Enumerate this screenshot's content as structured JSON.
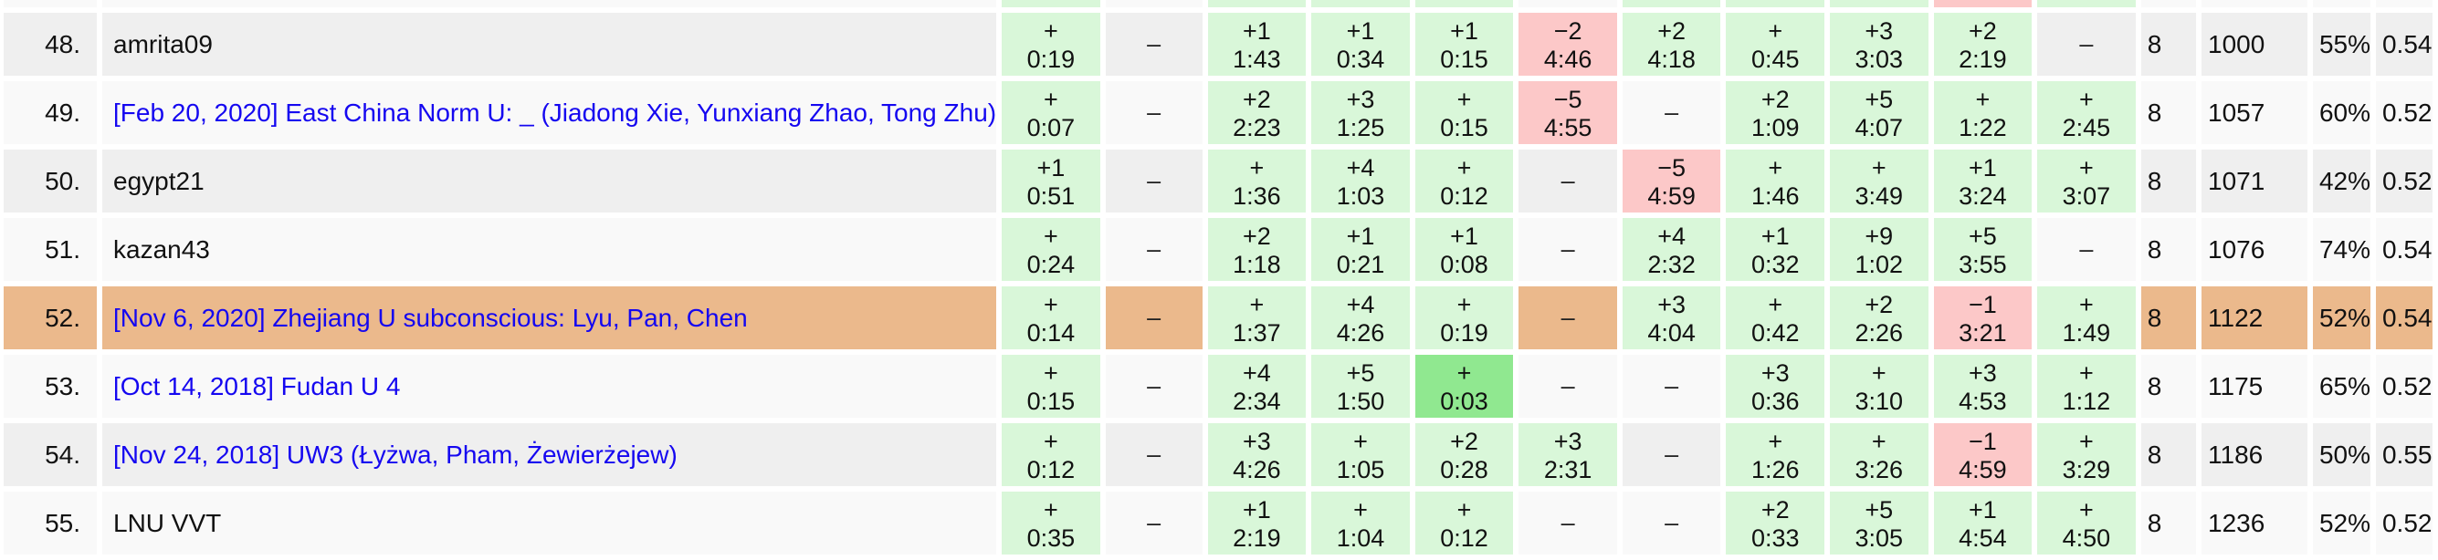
{
  "table": {
    "colors": {
      "row_light": "#f9f9f9",
      "row_dark": "#efefef",
      "highlight": "#ebb98c",
      "solved": "#d9f7d9",
      "first_solved": "#90e890",
      "failed": "#fcc8c8",
      "link": "#1507f0"
    },
    "partial_top_row": {
      "shade": "light",
      "problem_statuses": [
        "solved",
        "none",
        "solved",
        "solved",
        "solved",
        "none",
        "solved",
        "solved",
        "solved",
        "failed",
        "solved"
      ]
    },
    "rows": [
      {
        "rank": "48.",
        "name": "amrita09",
        "is_link": false,
        "shade": "dark",
        "problems": [
          {
            "attempts": "+",
            "time": "0:19",
            "status": "solved"
          },
          {
            "attempts": "–",
            "time": "",
            "status": "none"
          },
          {
            "attempts": "+1",
            "time": "1:43",
            "status": "solved"
          },
          {
            "attempts": "+1",
            "time": "0:34",
            "status": "solved"
          },
          {
            "attempts": "+1",
            "time": "0:15",
            "status": "solved"
          },
          {
            "attempts": "−2",
            "time": "4:46",
            "status": "failed"
          },
          {
            "attempts": "+2",
            "time": "4:18",
            "status": "solved"
          },
          {
            "attempts": "+",
            "time": "0:45",
            "status": "solved"
          },
          {
            "attempts": "+3",
            "time": "3:03",
            "status": "solved"
          },
          {
            "attempts": "+2",
            "time": "2:19",
            "status": "solved"
          },
          {
            "attempts": "–",
            "time": "",
            "status": "none"
          }
        ],
        "solved": "8",
        "penalty": "1000",
        "success_rate": "55%",
        "ratio": "0.54"
      },
      {
        "rank": "49.",
        "name": "[Feb 20, 2020] East China Norm U: _ (Jiadong Xie, Yunxiang Zhao, Tong Zhu)",
        "is_link": true,
        "shade": "light",
        "problems": [
          {
            "attempts": "+",
            "time": "0:07",
            "status": "solved"
          },
          {
            "attempts": "–",
            "time": "",
            "status": "none"
          },
          {
            "attempts": "+2",
            "time": "2:23",
            "status": "solved"
          },
          {
            "attempts": "+3",
            "time": "1:25",
            "status": "solved"
          },
          {
            "attempts": "+",
            "time": "0:15",
            "status": "solved"
          },
          {
            "attempts": "−5",
            "time": "4:55",
            "status": "failed"
          },
          {
            "attempts": "–",
            "time": "",
            "status": "none"
          },
          {
            "attempts": "+2",
            "time": "1:09",
            "status": "solved"
          },
          {
            "attempts": "+5",
            "time": "4:07",
            "status": "solved"
          },
          {
            "attempts": "+",
            "time": "1:22",
            "status": "solved"
          },
          {
            "attempts": "+",
            "time": "2:45",
            "status": "solved"
          }
        ],
        "solved": "8",
        "penalty": "1057",
        "success_rate": "60%",
        "ratio": "0.52"
      },
      {
        "rank": "50.",
        "name": "egypt21",
        "is_link": false,
        "shade": "dark",
        "problems": [
          {
            "attempts": "+1",
            "time": "0:51",
            "status": "solved"
          },
          {
            "attempts": "–",
            "time": "",
            "status": "none"
          },
          {
            "attempts": "+",
            "time": "1:36",
            "status": "solved"
          },
          {
            "attempts": "+4",
            "time": "1:03",
            "status": "solved"
          },
          {
            "attempts": "+",
            "time": "0:12",
            "status": "solved"
          },
          {
            "attempts": "–",
            "time": "",
            "status": "none"
          },
          {
            "attempts": "−5",
            "time": "4:59",
            "status": "failed"
          },
          {
            "attempts": "+",
            "time": "1:46",
            "status": "solved"
          },
          {
            "attempts": "+",
            "time": "3:49",
            "status": "solved"
          },
          {
            "attempts": "+1",
            "time": "3:24",
            "status": "solved"
          },
          {
            "attempts": "+",
            "time": "3:07",
            "status": "solved"
          }
        ],
        "solved": "8",
        "penalty": "1071",
        "success_rate": "42%",
        "ratio": "0.52"
      },
      {
        "rank": "51.",
        "name": "kazan43",
        "is_link": false,
        "shade": "light",
        "problems": [
          {
            "attempts": "+",
            "time": "0:24",
            "status": "solved"
          },
          {
            "attempts": "–",
            "time": "",
            "status": "none"
          },
          {
            "attempts": "+2",
            "time": "1:18",
            "status": "solved"
          },
          {
            "attempts": "+1",
            "time": "0:21",
            "status": "solved"
          },
          {
            "attempts": "+1",
            "time": "0:08",
            "status": "solved"
          },
          {
            "attempts": "–",
            "time": "",
            "status": "none"
          },
          {
            "attempts": "+4",
            "time": "2:32",
            "status": "solved"
          },
          {
            "attempts": "+1",
            "time": "0:32",
            "status": "solved"
          },
          {
            "attempts": "+9",
            "time": "1:02",
            "status": "solved"
          },
          {
            "attempts": "+5",
            "time": "3:55",
            "status": "solved"
          },
          {
            "attempts": "–",
            "time": "",
            "status": "none"
          }
        ],
        "solved": "8",
        "penalty": "1076",
        "success_rate": "74%",
        "ratio": "0.54"
      },
      {
        "rank": "52.",
        "name": "[Nov 6, 2020] Zhejiang U subconscious: Lyu, Pan, Chen",
        "is_link": true,
        "shade": "highlight",
        "problems": [
          {
            "attempts": "+",
            "time": "0:14",
            "status": "solved"
          },
          {
            "attempts": "–",
            "time": "",
            "status": "none"
          },
          {
            "attempts": "+",
            "time": "1:37",
            "status": "solved"
          },
          {
            "attempts": "+4",
            "time": "4:26",
            "status": "solved"
          },
          {
            "attempts": "+",
            "time": "0:19",
            "status": "solved"
          },
          {
            "attempts": "–",
            "time": "",
            "status": "none"
          },
          {
            "attempts": "+3",
            "time": "4:04",
            "status": "solved"
          },
          {
            "attempts": "+",
            "time": "0:42",
            "status": "solved"
          },
          {
            "attempts": "+2",
            "time": "2:26",
            "status": "solved"
          },
          {
            "attempts": "−1",
            "time": "3:21",
            "status": "failed"
          },
          {
            "attempts": "+",
            "time": "1:49",
            "status": "solved"
          }
        ],
        "solved": "8",
        "penalty": "1122",
        "success_rate": "52%",
        "ratio": "0.54"
      },
      {
        "rank": "53.",
        "name": "[Oct 14, 2018] Fudan U 4",
        "is_link": true,
        "shade": "light",
        "problems": [
          {
            "attempts": "+",
            "time": "0:15",
            "status": "solved"
          },
          {
            "attempts": "–",
            "time": "",
            "status": "none"
          },
          {
            "attempts": "+4",
            "time": "2:34",
            "status": "solved"
          },
          {
            "attempts": "+5",
            "time": "1:50",
            "status": "solved"
          },
          {
            "attempts": "+",
            "time": "0:03",
            "status": "first"
          },
          {
            "attempts": "–",
            "time": "",
            "status": "none"
          },
          {
            "attempts": "–",
            "time": "",
            "status": "none"
          },
          {
            "attempts": "+3",
            "time": "0:36",
            "status": "solved"
          },
          {
            "attempts": "+",
            "time": "3:10",
            "status": "solved"
          },
          {
            "attempts": "+3",
            "time": "4:53",
            "status": "solved"
          },
          {
            "attempts": "+",
            "time": "1:12",
            "status": "solved"
          }
        ],
        "solved": "8",
        "penalty": "1175",
        "success_rate": "65%",
        "ratio": "0.52"
      },
      {
        "rank": "54.",
        "name": "[Nov 24, 2018] UW3 (Łyżwa, Pham, Żewierżejew)",
        "is_link": true,
        "shade": "dark",
        "problems": [
          {
            "attempts": "+",
            "time": "0:12",
            "status": "solved"
          },
          {
            "attempts": "–",
            "time": "",
            "status": "none"
          },
          {
            "attempts": "+3",
            "time": "4:26",
            "status": "solved"
          },
          {
            "attempts": "+",
            "time": "1:05",
            "status": "solved"
          },
          {
            "attempts": "+2",
            "time": "0:28",
            "status": "solved"
          },
          {
            "attempts": "+3",
            "time": "2:31",
            "status": "solved"
          },
          {
            "attempts": "–",
            "time": "",
            "status": "none"
          },
          {
            "attempts": "+",
            "time": "1:26",
            "status": "solved"
          },
          {
            "attempts": "+",
            "time": "3:26",
            "status": "solved"
          },
          {
            "attempts": "−1",
            "time": "4:59",
            "status": "failed"
          },
          {
            "attempts": "+",
            "time": "3:29",
            "status": "solved"
          }
        ],
        "solved": "8",
        "penalty": "1186",
        "success_rate": "50%",
        "ratio": "0.55"
      },
      {
        "rank": "55.",
        "name": "LNU VVT",
        "is_link": false,
        "shade": "light",
        "problems": [
          {
            "attempts": "+",
            "time": "0:35",
            "status": "solved"
          },
          {
            "attempts": "–",
            "time": "",
            "status": "none"
          },
          {
            "attempts": "+1",
            "time": "2:19",
            "status": "solved"
          },
          {
            "attempts": "+",
            "time": "1:04",
            "status": "solved"
          },
          {
            "attempts": "+",
            "time": "0:12",
            "status": "solved"
          },
          {
            "attempts": "–",
            "time": "",
            "status": "none"
          },
          {
            "attempts": "–",
            "time": "",
            "status": "none"
          },
          {
            "attempts": "+2",
            "time": "0:33",
            "status": "solved"
          },
          {
            "attempts": "+5",
            "time": "3:05",
            "status": "solved"
          },
          {
            "attempts": "+1",
            "time": "4:54",
            "status": "solved"
          },
          {
            "attempts": "+",
            "time": "4:50",
            "status": "solved"
          }
        ],
        "solved": "8",
        "penalty": "1236",
        "success_rate": "52%",
        "ratio": "0.52"
      }
    ]
  }
}
